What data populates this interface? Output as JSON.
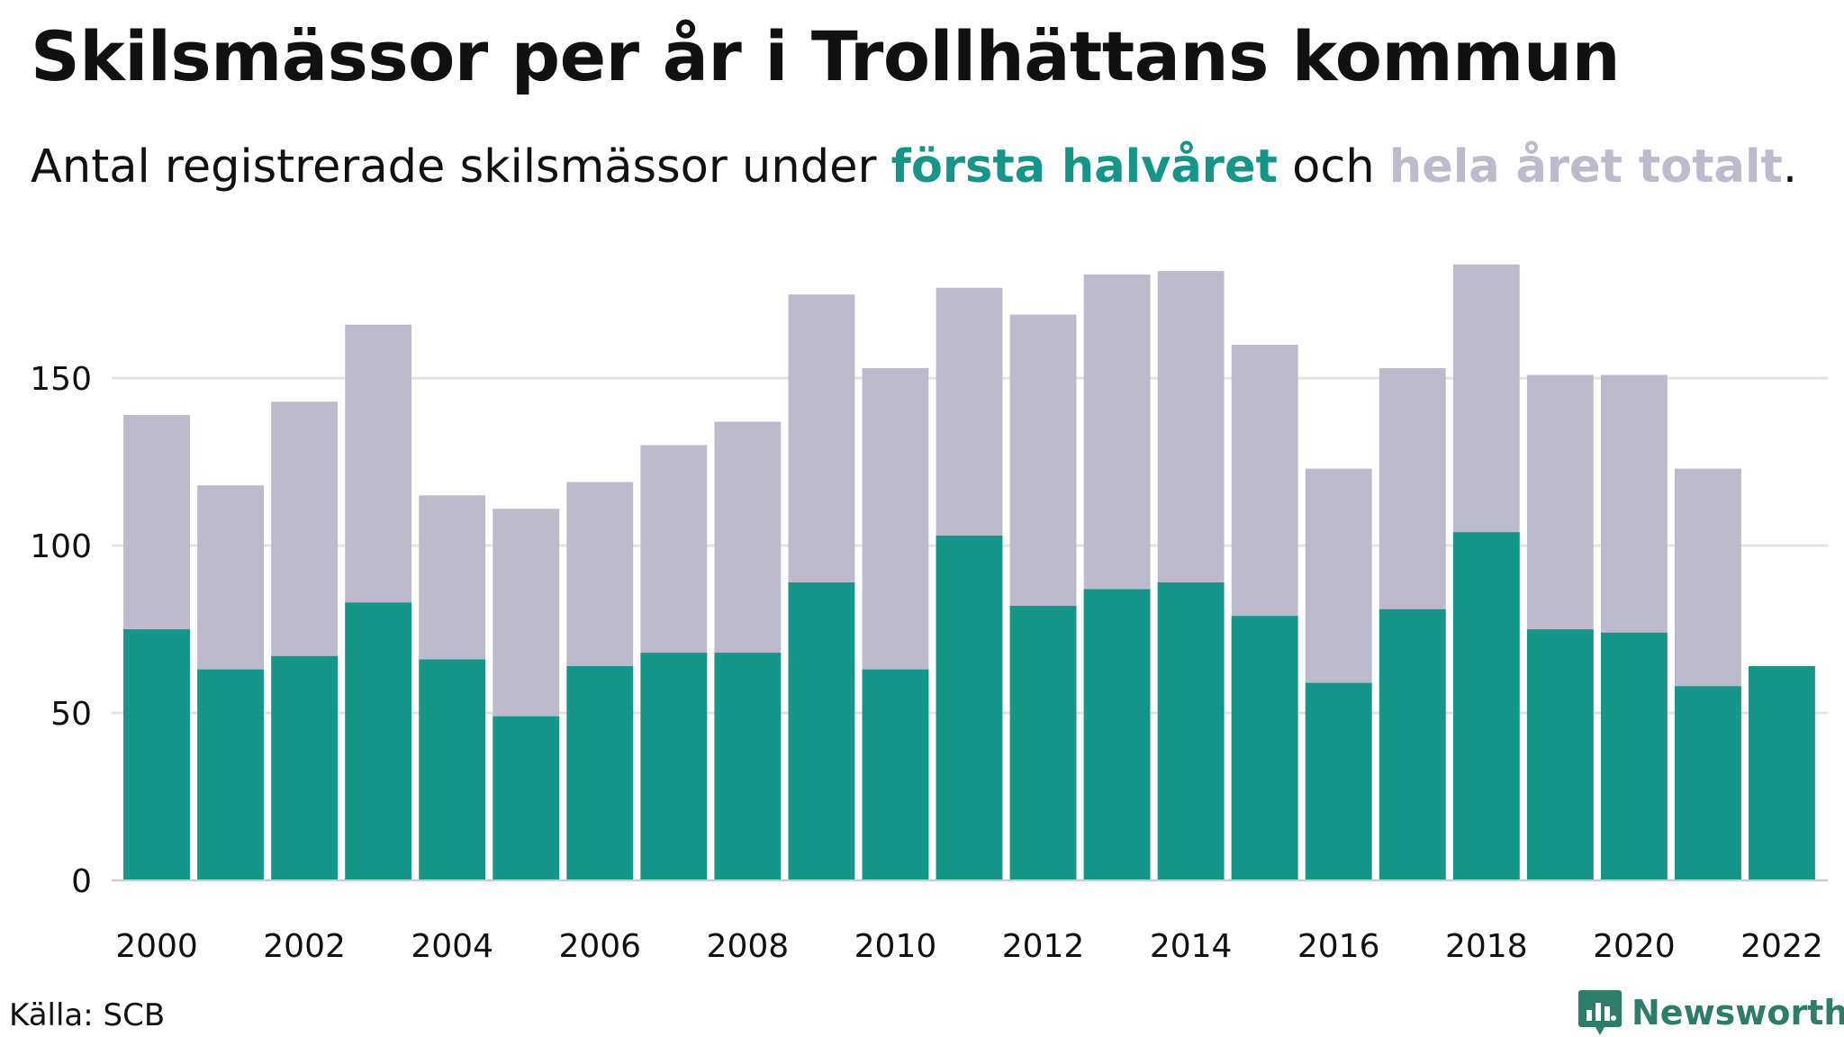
{
  "header": {
    "title": "Skilsmässor per år i Trollhättans kommun",
    "subtitle_prefix": "Antal registrerade skilsmässor under ",
    "subtitle_highlight1": "första halvåret",
    "subtitle_middle": " och ",
    "subtitle_highlight2": "hela året totalt",
    "subtitle_suffix": "."
  },
  "footer": {
    "source": "Källa: SCB",
    "brand": "Newsworthy"
  },
  "colors": {
    "first_half": "#159688",
    "full_year": "#bcbacb",
    "grid": "#e3e3e3",
    "text": "#111111",
    "brand": "#2e7d6b"
  },
  "chart_data": {
    "type": "bar",
    "stacking": "overlay",
    "categories": [
      "2000",
      "2001",
      "2002",
      "2003",
      "2004",
      "2005",
      "2006",
      "2007",
      "2008",
      "2009",
      "2010",
      "2011",
      "2012",
      "2013",
      "2014",
      "2015",
      "2016",
      "2017",
      "2018",
      "2019",
      "2020",
      "2021",
      "2022"
    ],
    "x_tick_labels": [
      "2000",
      "2002",
      "2004",
      "2006",
      "2008",
      "2010",
      "2012",
      "2014",
      "2016",
      "2018",
      "2020",
      "2022"
    ],
    "series": [
      {
        "name": "hela året totalt",
        "color": "#bcbacb",
        "values": [
          139,
          118,
          143,
          166,
          115,
          111,
          119,
          130,
          137,
          175,
          153,
          177,
          169,
          181,
          182,
          160,
          123,
          153,
          184,
          151,
          151,
          123,
          null
        ]
      },
      {
        "name": "första halvåret",
        "color": "#159688",
        "values": [
          75,
          63,
          67,
          83,
          66,
          49,
          64,
          68,
          68,
          89,
          63,
          103,
          82,
          87,
          89,
          79,
          59,
          81,
          104,
          75,
          74,
          58,
          64
        ]
      }
    ],
    "y_ticks": [
      0,
      50,
      100,
      150
    ],
    "ylim": [
      0,
      185
    ],
    "grid": true,
    "legend": "in subtitle"
  }
}
